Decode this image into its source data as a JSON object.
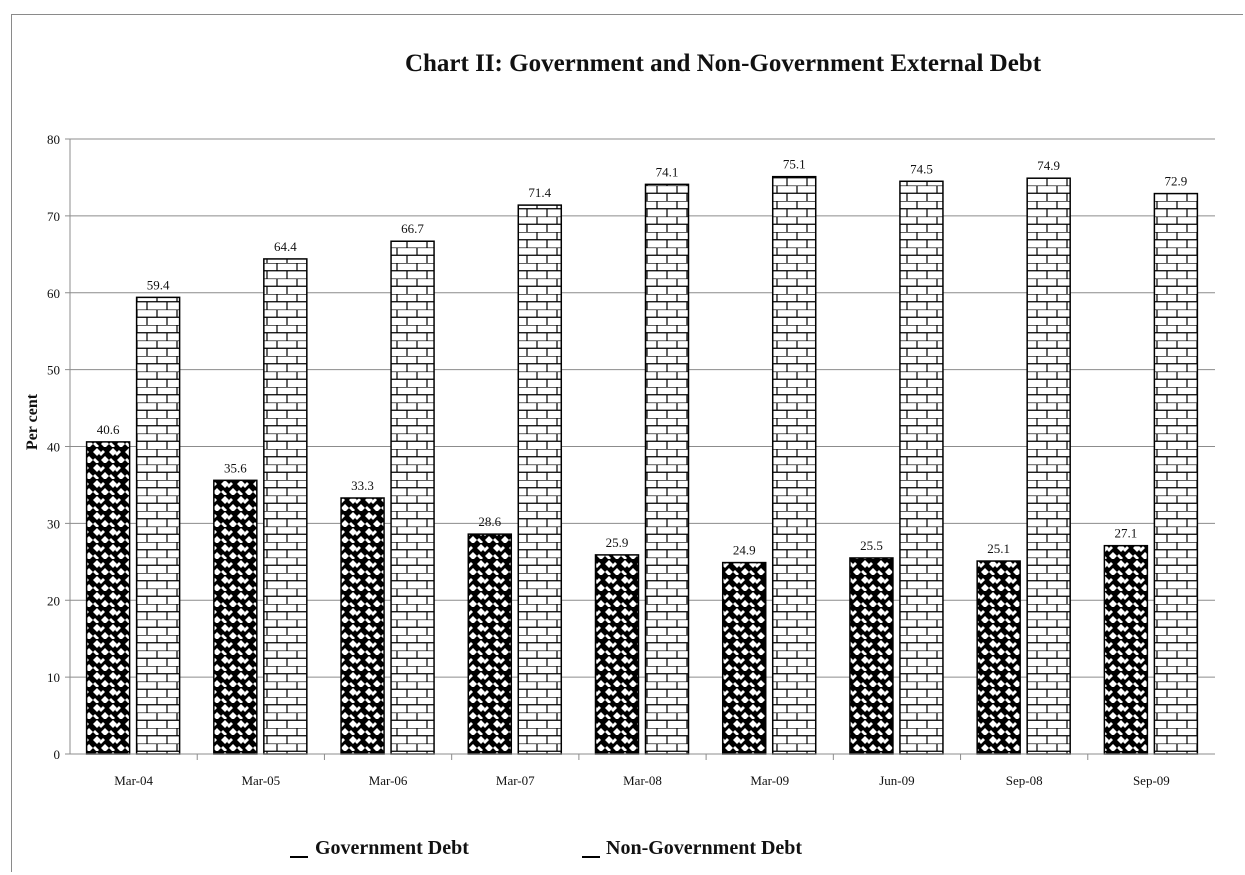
{
  "chart_data": {
    "type": "bar",
    "title": "Chart II: Government and Non-Government External Debt",
    "xlabel": "",
    "ylabel": "Per cent",
    "ylim": [
      0,
      80
    ],
    "yticks": [
      0,
      10,
      20,
      30,
      40,
      50,
      60,
      70,
      80
    ],
    "grid": true,
    "legend_position": "bottom",
    "categories": [
      "Mar-04",
      "Mar-05",
      "Mar-06",
      "Mar-07",
      "Mar-08",
      "Mar-09",
      "Jun-09",
      "Sep-08",
      "Sep-09"
    ],
    "series": [
      {
        "name": "Government Debt",
        "values": [
          40.6,
          35.6,
          33.3,
          28.6,
          25.9,
          24.9,
          25.5,
          25.1,
          27.1
        ],
        "labels": [
          "40.6",
          "35.6",
          "33.3",
          "28.6",
          "25.9",
          "24.9",
          "25.5",
          "25.1",
          "27.1"
        ],
        "pattern": "basketweave"
      },
      {
        "name": "Non-Government Debt",
        "values": [
          59.4,
          64.4,
          66.7,
          71.4,
          74.1,
          75.1,
          74.5,
          74.9,
          72.9
        ],
        "labels": [
          "59.4",
          "64.4",
          "66.7",
          "71.4",
          "74.1",
          "75.1",
          "74.5",
          "74.9",
          "72.9"
        ],
        "pattern": "brick"
      }
    ],
    "colors": {
      "bar_stroke": "#000000",
      "pattern_fg": "#000000",
      "pattern_bg": "#ffffff",
      "grid": "#8c8c8c",
      "axis": "#8c8c8c"
    }
  }
}
